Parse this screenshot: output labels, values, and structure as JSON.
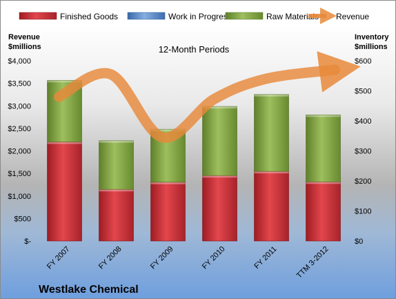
{
  "chart_data": {
    "type": "bar",
    "stacked": true,
    "subtitle": "12-Month Periods",
    "company": "Westlake Chemical",
    "categories": [
      "FY 2007",
      "FY 2008",
      "FY 2009",
      "FY 2010",
      "FY 2011",
      "TTM 3-2012"
    ],
    "left_axis": {
      "title_line1": "Revenue",
      "title_line2": "$millions",
      "range": [
        0,
        4000
      ],
      "ticks": [
        0,
        500,
        1000,
        1500,
        2000,
        2500,
        3000,
        3500,
        4000
      ],
      "tick_labels": [
        "$-",
        "$500",
        "$1,000",
        "$1,500",
        "$2,000",
        "$2,500",
        "$3,000",
        "$3,500",
        "$4,000"
      ]
    },
    "right_axis": {
      "title_line1": "Inventory",
      "title_line2": "$millions",
      "range": [
        0,
        600
      ],
      "ticks": [
        0,
        100,
        200,
        300,
        400,
        500,
        600
      ],
      "tick_labels": [
        "$0",
        "$100",
        "$200",
        "$300",
        "$400",
        "$500",
        "$600"
      ]
    },
    "series": [
      {
        "name": "Finished Goods",
        "axis": "right",
        "color": "#c0272d",
        "values": [
          330,
          172,
          196,
          218,
          232,
          197
        ]
      },
      {
        "name": "Work in Progress",
        "axis": "right",
        "color": "#4f81bd",
        "values": [
          0,
          0,
          0,
          0,
          0,
          0
        ]
      },
      {
        "name": "Raw Materials",
        "axis": "right",
        "color": "#7fa040",
        "values": [
          205,
          162,
          176,
          230,
          256,
          223
        ]
      },
      {
        "name": "Revenue",
        "axis": "left",
        "type": "line",
        "color": "#e8893a",
        "values": [
          3200,
          3700,
          2300,
          3150,
          3600,
          3800
        ]
      }
    ],
    "legend_position": "top",
    "grid": false
  }
}
